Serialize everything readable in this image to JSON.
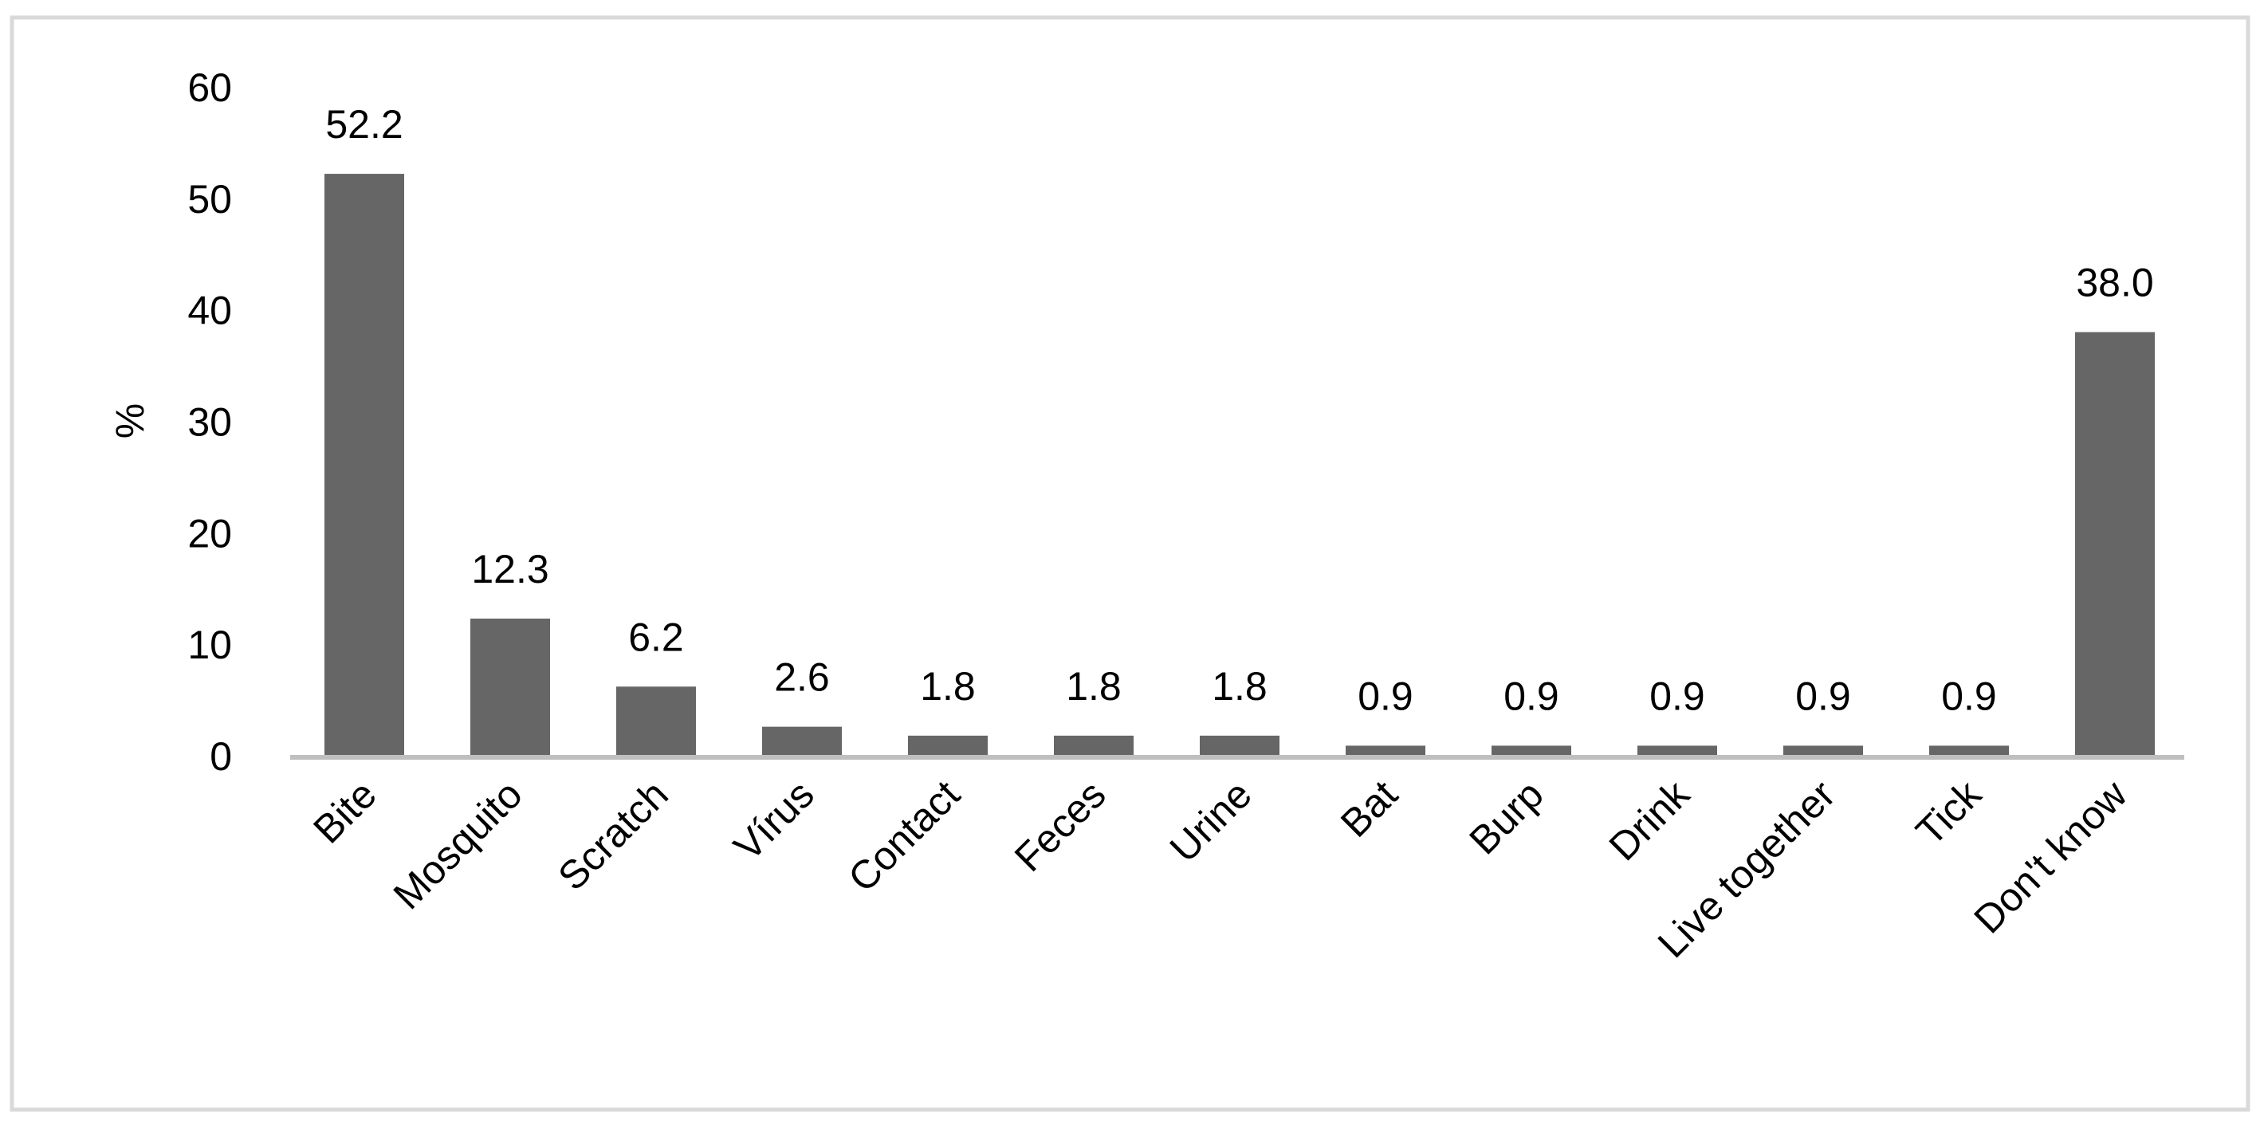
{
  "chart_data": {
    "type": "bar",
    "title": "",
    "xlabel": "",
    "ylabel": "%",
    "ylim": [
      0,
      60
    ],
    "yticks": [
      "0",
      "10",
      "20",
      "30",
      "40",
      "50",
      "60"
    ],
    "grid": false,
    "categories": [
      "Bite",
      "Mosquito",
      "Scratch",
      "Vírus",
      "Contact",
      "Feces",
      "Urine",
      "Bat",
      "Burp",
      "Drink",
      "Live together",
      "Tick",
      "Don't know"
    ],
    "values": [
      52.2,
      12.3,
      6.2,
      2.6,
      1.8,
      1.8,
      1.8,
      0.9,
      0.9,
      0.9,
      0.9,
      0.9,
      38.0
    ],
    "data_labels": [
      "52.2",
      "12.3",
      "6.2",
      "2.6",
      "1.8",
      "1.8",
      "1.8",
      "0.9",
      "0.9",
      "0.9",
      "0.9",
      "0.9",
      "38.0"
    ],
    "colors": {
      "bar": "#666666",
      "axis": "#bfbfbf",
      "frame": "#d9d9d9"
    }
  }
}
